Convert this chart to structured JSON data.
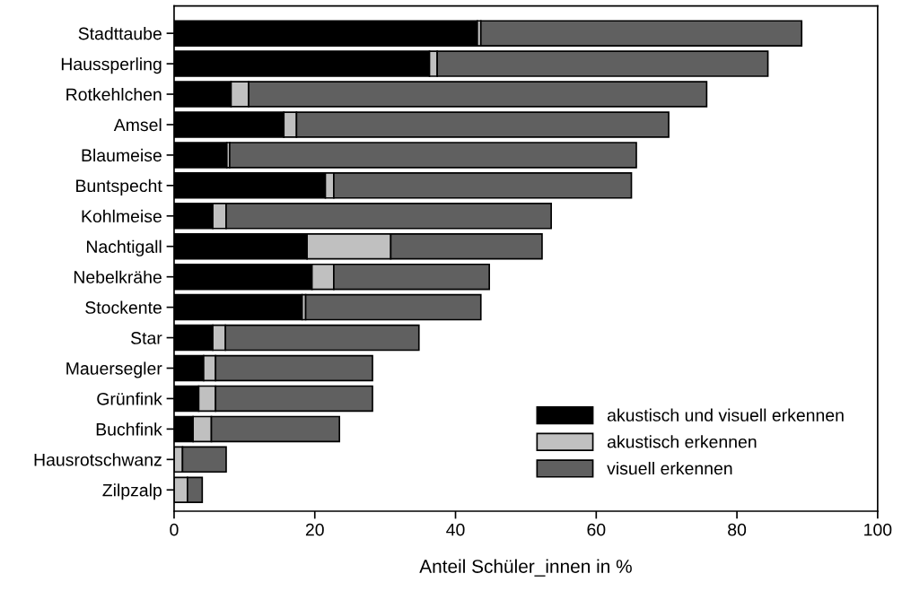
{
  "chart_data": {
    "type": "bar",
    "orientation": "horizontal",
    "stacked": true,
    "xlabel": "Anteil Schüler_innen in %",
    "categories": [
      "Stadttaube",
      "Haussperling",
      "Rotkehlchen",
      "Amsel",
      "Blaumeise",
      "Buntspecht",
      "Kohlmeise",
      "Nachtigall",
      "Nebelkrähe",
      "Stockente",
      "Star",
      "Mauersegler",
      "Grünfink",
      "Buchfink",
      "Hausrotschwanz",
      "Zilpzalp"
    ],
    "series": [
      {
        "name": "akustisch und visuell erkennen",
        "color": "#000000",
        "values": [
          43.1,
          36.3,
          8.1,
          15.6,
          7.5,
          21.5,
          5.5,
          18.9,
          19.6,
          18.2,
          5.5,
          4.2,
          3.5,
          2.7,
          0,
          0
        ]
      },
      {
        "name": "akustisch erkennen",
        "color": "#c0c0c0",
        "values": [
          0.5,
          1.1,
          2.5,
          1.8,
          0.4,
          1.2,
          1.9,
          11.9,
          3.1,
          0.5,
          1.8,
          1.7,
          2.4,
          2.6,
          1.2,
          1.9
        ]
      },
      {
        "name": "visuell erkennen",
        "color": "#606060",
        "values": [
          45.6,
          47.0,
          65.1,
          52.9,
          57.8,
          42.3,
          46.2,
          21.5,
          22.1,
          24.9,
          27.5,
          22.3,
          22.3,
          18.2,
          6.2,
          2.1
        ]
      }
    ],
    "xlim": [
      0,
      100
    ],
    "xticks": [
      0,
      20,
      40,
      60,
      80,
      100
    ],
    "grid": false,
    "legend": "bottom right"
  }
}
